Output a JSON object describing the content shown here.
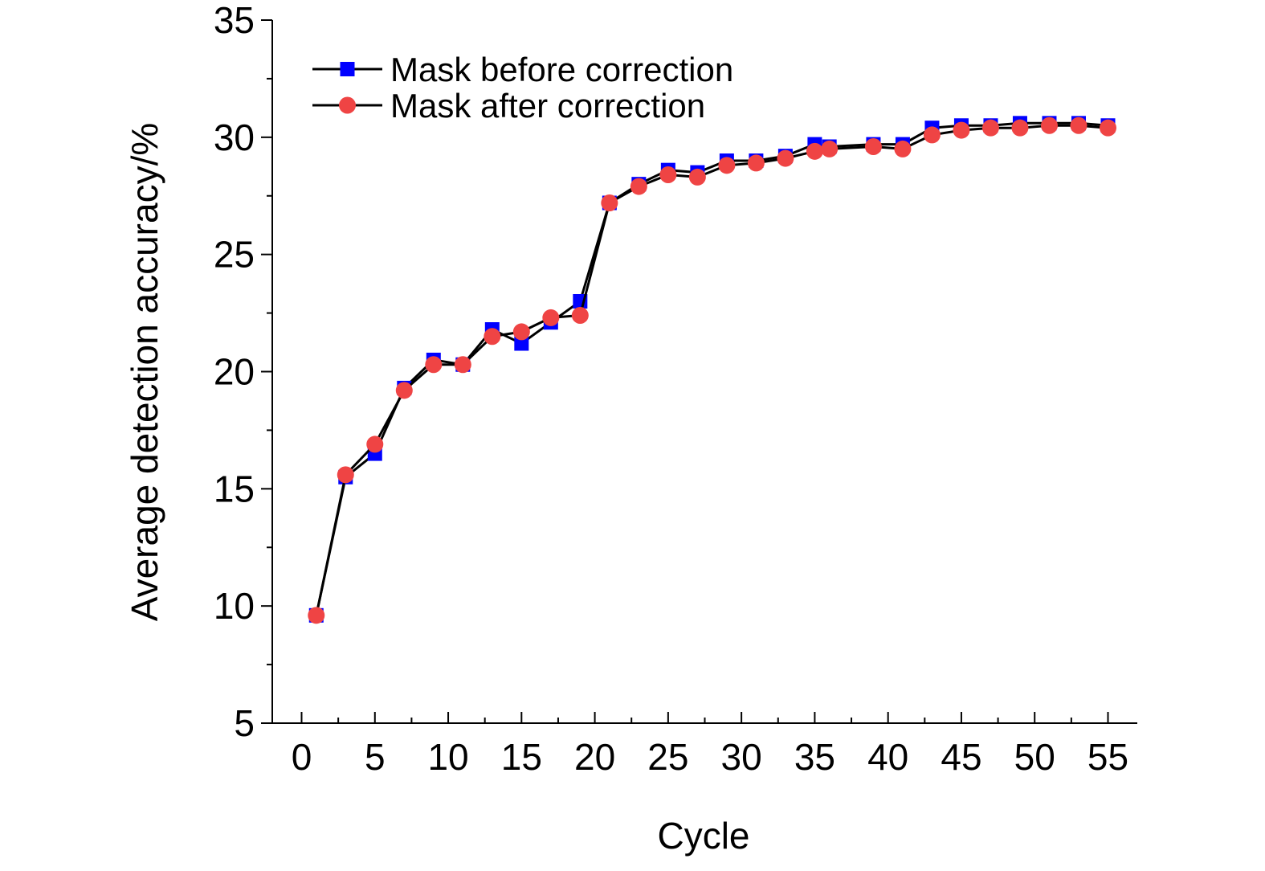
{
  "chart_data": {
    "type": "line",
    "title": "",
    "xlabel": "Cycle",
    "ylabel": "Average detection accuracy/%",
    "xlim": [
      -2,
      57
    ],
    "ylim": [
      5,
      35
    ],
    "xticks": [
      0,
      5,
      10,
      15,
      20,
      25,
      30,
      35,
      40,
      45,
      50,
      55
    ],
    "yticks": [
      5,
      10,
      15,
      20,
      25,
      30,
      35
    ],
    "grid": false,
    "legend_position": "top-left",
    "x": [
      1,
      3,
      5,
      7,
      9,
      11,
      13,
      15,
      17,
      19,
      21,
      23,
      25,
      27,
      29,
      31,
      33,
      35,
      36,
      39,
      41,
      43,
      45,
      47,
      49,
      51,
      53,
      55
    ],
    "series": [
      {
        "name": "Mask before correction",
        "marker": "square",
        "color": "#0000ff",
        "values": [
          9.6,
          15.5,
          16.5,
          19.3,
          20.5,
          20.3,
          21.8,
          21.2,
          22.1,
          23.0,
          27.2,
          28.0,
          28.6,
          28.5,
          29.0,
          29.0,
          29.2,
          29.7,
          29.6,
          29.7,
          29.7,
          30.4,
          30.5,
          30.5,
          30.6,
          30.6,
          30.6,
          30.5
        ]
      },
      {
        "name": "Mask after correction",
        "marker": "circle",
        "color": "#ef4444",
        "values": [
          9.6,
          15.6,
          16.9,
          19.2,
          20.3,
          20.3,
          21.5,
          21.7,
          22.3,
          22.4,
          27.2,
          27.9,
          28.4,
          28.3,
          28.8,
          28.9,
          29.1,
          29.4,
          29.5,
          29.6,
          29.5,
          30.1,
          30.3,
          30.4,
          30.4,
          30.5,
          30.5,
          30.4
        ]
      }
    ]
  }
}
